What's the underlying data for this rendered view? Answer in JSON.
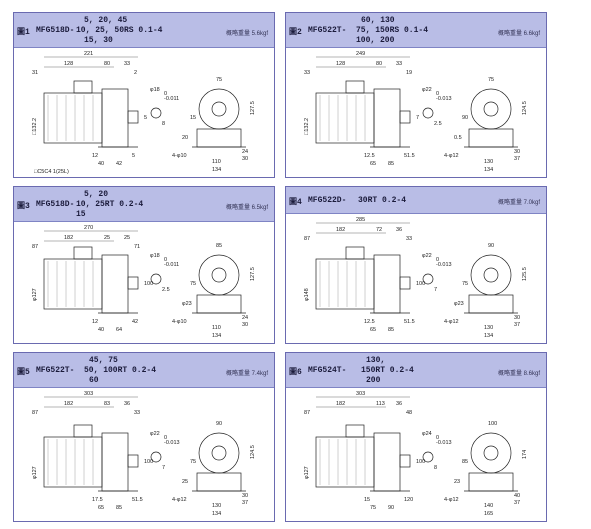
{
  "panels": [
    {
      "fig": "圖1",
      "model": "MFG518D-",
      "ratios": [
        "5, 20, 45",
        "10, 25, 50RS 0.1-4",
        "15, 30"
      ],
      "weight": "概略重量 5.6kgf",
      "dims": {
        "len1": "221",
        "len2": "128",
        "len3": "80",
        "len4": "33",
        "d1": "31",
        "d2": "2",
        "d3": "□132.2",
        "d4": "φ18",
        "d5": "0",
        "d6": "-0.011",
        "d7": "5",
        "d8": "8",
        "d9": "12",
        "d10": "40",
        "d11": "42",
        "d12": "5",
        "d13": "4-φ10",
        "d14": "110",
        "d15": "134",
        "d16": "127.5",
        "d17": "24",
        "d18": "30",
        "d19": "75",
        "d20": "15",
        "d21": "20",
        "note": "□C5C4 1(25L)"
      }
    },
    {
      "fig": "圖2",
      "model": "MFG522T-",
      "ratios": [
        "60, 130",
        "75, 150RS 0.1-4",
        "100, 200"
      ],
      "weight": "概略重量 6.6kgf",
      "dims": {
        "len1": "249",
        "len2": "128",
        "len3": "80",
        "len4": "33",
        "d1": "33",
        "d2": "19",
        "d3": "□132.2",
        "d4": "φ22",
        "d5": "0",
        "d6": "-0.013",
        "d7": "7",
        "d8": "2.5",
        "d9": "12.5",
        "d10": "65",
        "d11": "85",
        "d12": "51.5",
        "d13": "4-φ12",
        "d14": "130",
        "d15": "134",
        "d16": "124.5",
        "d17": "30",
        "d18": "37",
        "d19": "75",
        "d20": "90",
        "d21": "0.5",
        "note": ""
      }
    },
    {
      "fig": "圖3",
      "model": "MFG518D-",
      "ratios": [
        "5, 20",
        "10, 25RT 0.2-4",
        "15"
      ],
      "weight": "概略重量 6.5kgf",
      "dims": {
        "len1": "270",
        "len2": "182",
        "len3": "25",
        "len4": "25",
        "d1": "87",
        "d2": "71",
        "d3": "φ127",
        "d4": "φ18",
        "d5": "0",
        "d6": "-0.011",
        "d7": "100",
        "d8": "2.5",
        "d9": "12",
        "d10": "40",
        "d11": "64",
        "d12": "42",
        "d13": "4-φ10",
        "d14": "110",
        "d15": "134",
        "d16": "127.5",
        "d17": "24",
        "d18": "30",
        "d19": "85",
        "d20": "75",
        "d21": "φ23",
        "note": ""
      }
    },
    {
      "fig": "圖4",
      "model": "MFG522D-",
      "ratios": [
        "30RT 0.2-4"
      ],
      "weight": "概略重量 7.0kgf",
      "dims": {
        "len1": "285",
        "len2": "182",
        "len3": "72",
        "len4": "36",
        "d1": "87",
        "d2": "33",
        "d3": "φ148",
        "d4": "φ22",
        "d5": "0",
        "d6": "-0.013",
        "d7": "100",
        "d8": "7",
        "d9": "12.5",
        "d10": "65",
        "d11": "85",
        "d12": "51.5",
        "d13": "4-φ12",
        "d14": "130",
        "d15": "134",
        "d16": "125.5",
        "d17": "30",
        "d18": "37",
        "d19": "90",
        "d20": "75",
        "d21": "φ23",
        "note": ""
      }
    },
    {
      "fig": "圖5",
      "model": "MFG522T-",
      "ratios": [
        "45, 75",
        "50, 100RT 0.2-4",
        "60"
      ],
      "weight": "概略重量 7.4kgf",
      "dims": {
        "len1": "303",
        "len2": "182",
        "len3": "83",
        "len4": "36",
        "d1": "87",
        "d2": "33",
        "d3": "φ127",
        "d4": "φ22",
        "d5": "0",
        "d6": "-0.013",
        "d7": "100",
        "d8": "7",
        "d9": "17.5",
        "d10": "65",
        "d11": "85",
        "d12": "51.5",
        "d13": "4-φ12",
        "d14": "130",
        "d15": "134",
        "d16": "124.5",
        "d17": "30",
        "d18": "37",
        "d19": "90",
        "d20": "75",
        "d21": "25",
        "note": ""
      }
    },
    {
      "fig": "圖6",
      "model": "MFG524T-",
      "ratios": [
        "130,",
        "150RT 0.2-4",
        "200"
      ],
      "weight": "概略重量 8.6kgf",
      "dims": {
        "len1": "303",
        "len2": "182",
        "len3": "113",
        "len4": "36",
        "d1": "87",
        "d2": "48",
        "d3": "φ127",
        "d4": "φ24",
        "d5": "0",
        "d6": "-0.013",
        "d7": "100",
        "d8": "8",
        "d9": "15",
        "d10": "75",
        "d11": "90",
        "d12": "120",
        "d13": "4-φ12",
        "d14": "140",
        "d15": "165",
        "d16": "174",
        "d17": "40",
        "d18": "37",
        "d19": "100",
        "d20": "85",
        "d21": "23",
        "note": ""
      }
    }
  ]
}
